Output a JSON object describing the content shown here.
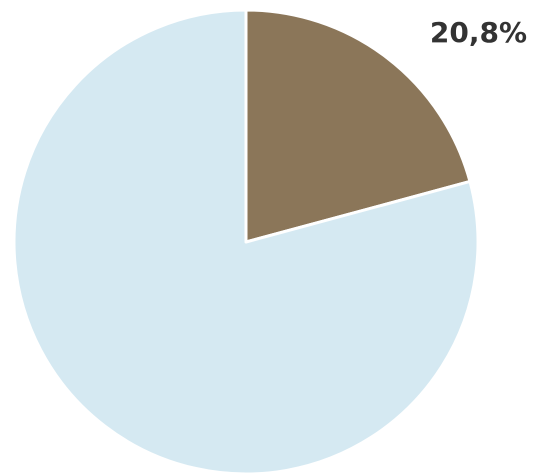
{
  "chart_data": {
    "type": "pie",
    "values": [
      20.8,
      79.2
    ],
    "value_labels": [
      "20,8%",
      null
    ],
    "colors": [
      "#8b7659",
      "#d5e9f2"
    ],
    "start_angle": 0,
    "direction": "clockwise"
  }
}
